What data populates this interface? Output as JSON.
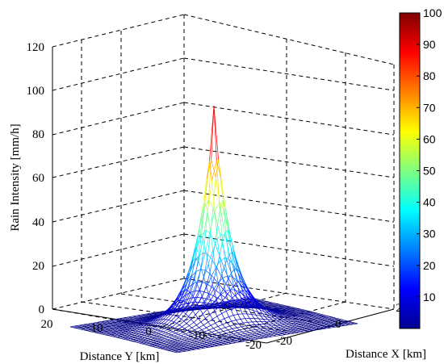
{
  "chart_data": {
    "type": "surface",
    "title": "",
    "xlabel": "Distance X [km]",
    "ylabel": "Distance Y [km]",
    "zlabel": "Rain Intensity [mm/h]",
    "xlim": [
      -25,
      25
    ],
    "ylim": [
      -25,
      20
    ],
    "zlim": [
      0,
      120
    ],
    "x_ticks": [
      "-20",
      "0",
      "2"
    ],
    "y_ticks": [
      "20",
      "10",
      "0",
      "-10",
      "-20"
    ],
    "z_ticks": [
      "0",
      "20",
      "40",
      "60",
      "80",
      "100",
      "120"
    ],
    "colorbar": {
      "colormap": "jet",
      "range": [
        0,
        100
      ],
      "ticks": [
        "10",
        "20",
        "30",
        "40",
        "50",
        "60",
        "70",
        "80",
        "90",
        "100"
      ]
    },
    "surface": {
      "function": "peak * exp(-r / scale)",
      "peak": 100,
      "peak_at": [
        0,
        0
      ],
      "scale_km": 3.5,
      "grid_range": [
        -20,
        20
      ],
      "grid_step": 1
    },
    "grid": true
  }
}
